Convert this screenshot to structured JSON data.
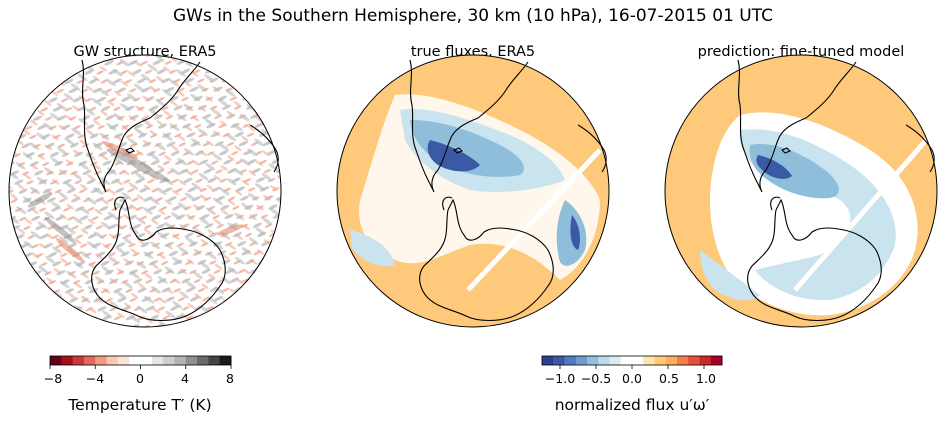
{
  "figure": {
    "title": "GWs in the Southern Hemisphere, 30 km (10 hPa), 16-07-2015 01 UTC"
  },
  "panels": [
    {
      "title": "GW structure, ERA5"
    },
    {
      "title": "true fluxes, ERA5"
    },
    {
      "title": "prediction: fine-tuned model"
    }
  ],
  "colorbars": [
    {
      "label": "Temperature T′ (K)",
      "ticks": [
        "−8",
        "−4",
        "0",
        "4",
        "8"
      ],
      "range": [
        -8,
        8
      ],
      "colors": [
        "#67001f",
        "#a50f15",
        "#c93a3a",
        "#de6a5a",
        "#f09c84",
        "#f9c9b6",
        "#fbe3d7",
        "#ffffff",
        "#ffffff",
        "#e6e6e6",
        "#cfcfcf",
        "#b4b4b4",
        "#8f8f8f",
        "#6a6a6a",
        "#444444",
        "#1a1a1a"
      ]
    },
    {
      "label": "normalized flux u′ω′",
      "ticks": [
        "−1.0",
        "−0.5",
        "0.0",
        "0.5",
        "1.0"
      ],
      "range": [
        -1.25,
        1.25
      ],
      "colors": [
        "#2c3f8f",
        "#3b59a8",
        "#4f7bbf",
        "#6d9fce",
        "#93bfdc",
        "#bcdaea",
        "#dcecf3",
        "#ffffff",
        "#ffffff",
        "#fee6a6",
        "#fecb7a",
        "#fdae61",
        "#f47f4b",
        "#e3513a",
        "#c9292c",
        "#a50026"
      ]
    }
  ],
  "map_colors": {
    "background_orange": "#fec97a",
    "white": "#ffffff",
    "blue_light": "#c9e3ef",
    "blue_mid": "#8fbedb",
    "blue_dark": "#3a5aa6",
    "coastline": "#000000"
  }
}
